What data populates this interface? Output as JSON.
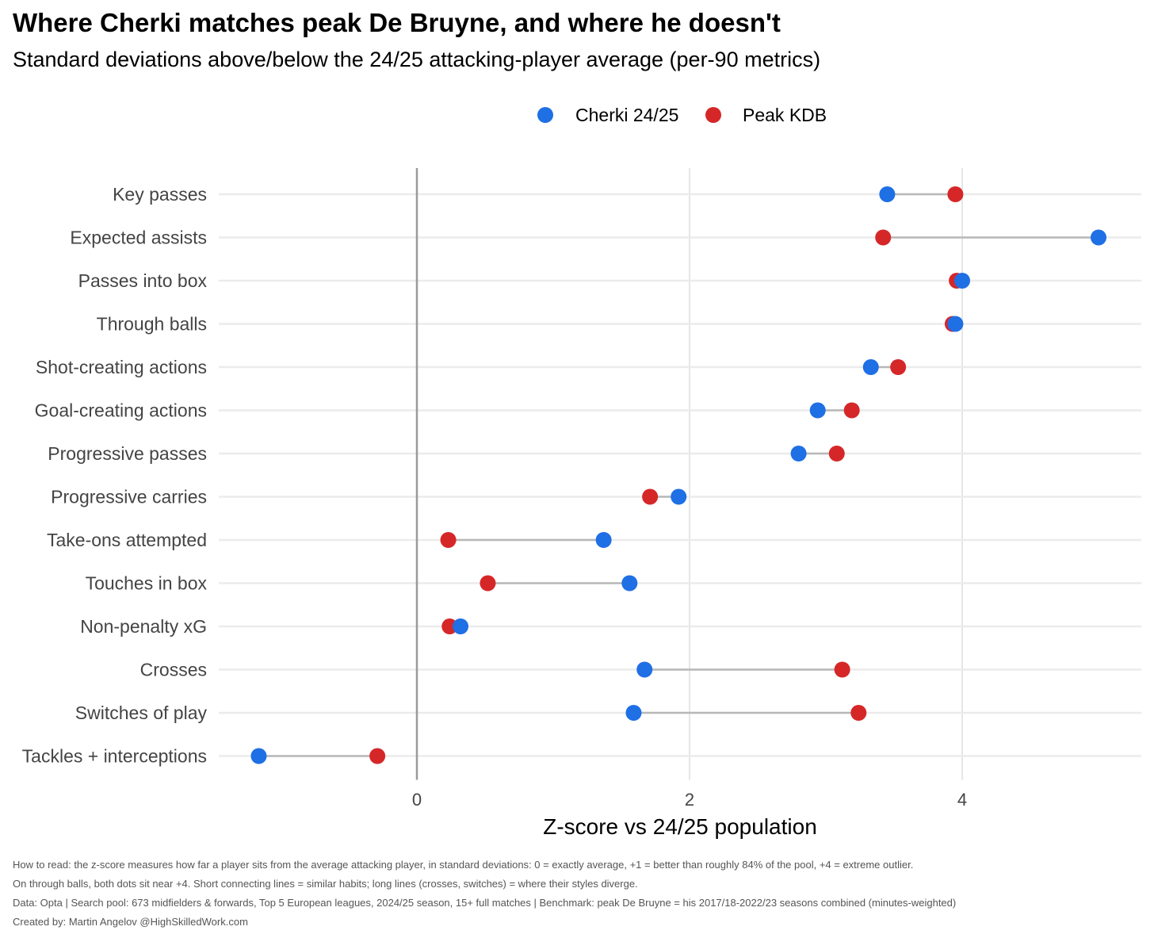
{
  "title": "Where Cherki matches peak De Bruyne, and where he doesn't",
  "subtitle": "Standard deviations above/below the 24/25 attacking-player average (per-90 metrics)",
  "notes": [
    "How to read: the z-score measures how far a player sits from the average attacking player, in standard deviations: 0 = exactly average, +1 = better than roughly 84% of the pool, +4 = extreme outlier.",
    "On through balls, both dots sit near +4. Short connecting lines = similar habits; long lines (crosses, switches) = where their styles diverge.",
    "Data: Opta | Search pool: 673 midfielders & forwards, Top 5 European leagues, 2024/25 season, 15+ full matches | Benchmark: peak De Bruyne = his 2017/18-2022/23 seasons combined (minutes-weighted)",
    "Created by: Martin Angelov @HighSkilledWork.com"
  ],
  "chart_data": {
    "type": "dumbbell",
    "xlabel": "Z-score vs 24/25 population",
    "ylabel": "",
    "xlim": [
      -1.45,
      5.35
    ],
    "xticks": [
      0,
      2,
      4
    ],
    "grid": true,
    "legend_position": "top",
    "categories": [
      "Key passes",
      "Expected assists",
      "Passes into box",
      "Through balls",
      "Shot-creating actions",
      "Goal-creating actions",
      "Progressive passes",
      "Progressive carries",
      "Take-ons attempted",
      "Touches in box",
      "Non-penalty xG",
      "Crosses",
      "Switches of play",
      "Tackles + interceptions"
    ],
    "series": [
      {
        "name": "Cherki 24/25",
        "color": "#1f6fe5",
        "values": [
          3.45,
          5.0,
          4.0,
          3.95,
          3.33,
          2.94,
          2.8,
          1.92,
          1.37,
          1.56,
          0.32,
          1.67,
          1.59,
          -1.16
        ]
      },
      {
        "name": "Peak KDB",
        "color": "#d62728",
        "values": [
          3.95,
          3.42,
          3.96,
          3.93,
          3.53,
          3.19,
          3.08,
          1.71,
          0.23,
          0.52,
          0.24,
          3.12,
          3.24,
          -0.29
        ]
      }
    ],
    "connector_color": "#b8b8b8"
  }
}
